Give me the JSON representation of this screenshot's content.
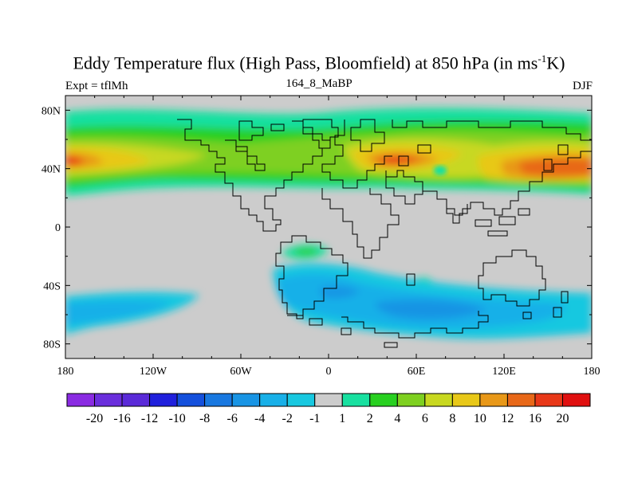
{
  "title": {
    "main": "Eddy Temperature flux (High Pass, Bloomfield) at 850 hPa (in ms",
    "sup": "-1",
    "tail": "K)"
  },
  "subtitle": {
    "left": "Expt = tflMh",
    "center": "164_8_MaBP",
    "right": "DJF"
  },
  "axes": {
    "x_ticks": [
      "180",
      "120W",
      "60W",
      "0",
      "60E",
      "120E",
      "180"
    ],
    "y_ticks": [
      "80N",
      "40N",
      "0",
      "40S",
      "80S"
    ]
  },
  "colorbar": {
    "labels": [
      "-20",
      "-16",
      "-12",
      "-10",
      "-8",
      "-6",
      "-4",
      "-2",
      "-1",
      "1",
      "2",
      "4",
      "6",
      "8",
      "10",
      "12",
      "16",
      "20"
    ],
    "colors": [
      "#8a2be2",
      "#6a2edc",
      "#5a2ad8",
      "#2020dc",
      "#1450dc",
      "#1878e0",
      "#1894e4",
      "#18b0e8",
      "#18c8e0",
      "#cccccc",
      "#18e0a0",
      "#28d020",
      "#7ed020",
      "#c8d820",
      "#e8c818",
      "#e89818",
      "#e86818",
      "#e83818",
      "#e01010"
    ]
  },
  "map_colors": {
    "land_missing": "#cccccc",
    "green_light": "#18e0a0",
    "green": "#28d020",
    "yellow_green": "#7ed020",
    "yellow": "#c8d820",
    "gold": "#e8c818",
    "orange": "#e89818",
    "dark_orange": "#e86818",
    "red_orange": "#e83818",
    "cyan": "#18c8e0",
    "sky": "#18b0e8",
    "blue": "#1894e4"
  }
}
